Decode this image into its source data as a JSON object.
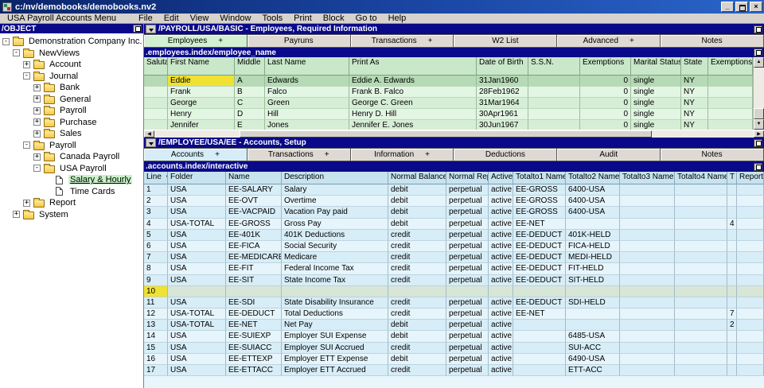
{
  "window": {
    "title": "c:/nv/demobooks/demobooks.nv2"
  },
  "icons": {
    "scroll_up": "▲",
    "scroll_down": "▼",
    "scroll_left": "◀",
    "scroll_right": "▶"
  },
  "menu": {
    "items": [
      "USA Payroll Accounts Menu",
      "File",
      "Edit",
      "View",
      "Window",
      "Tools",
      "Print",
      "Block",
      "Go to",
      "Help"
    ]
  },
  "tree": {
    "header": "/OBJECT",
    "items": [
      {
        "label": "Demonstration Company Inc.",
        "depth": 0,
        "toggle": "-",
        "icon": "folder"
      },
      {
        "label": "NewViews",
        "depth": 1,
        "toggle": "-",
        "icon": "folder"
      },
      {
        "label": "Account",
        "depth": 2,
        "toggle": "+",
        "icon": "folder"
      },
      {
        "label": "Journal",
        "depth": 2,
        "toggle": "-",
        "icon": "folder"
      },
      {
        "label": "Bank",
        "depth": 3,
        "toggle": "+",
        "icon": "folder"
      },
      {
        "label": "General",
        "depth": 3,
        "toggle": "+",
        "icon": "folder"
      },
      {
        "label": "Payroll",
        "depth": 3,
        "toggle": "+",
        "icon": "folder"
      },
      {
        "label": "Purchase",
        "depth": 3,
        "toggle": "+",
        "icon": "folder"
      },
      {
        "label": "Sales",
        "depth": 3,
        "toggle": "+",
        "icon": "folder"
      },
      {
        "label": "Payroll",
        "depth": 2,
        "toggle": "-",
        "icon": "folder"
      },
      {
        "label": "Canada Payroll",
        "depth": 3,
        "toggle": "+",
        "icon": "folder"
      },
      {
        "label": "USA Payroll",
        "depth": 3,
        "toggle": "-",
        "icon": "folder"
      },
      {
        "label": "Salary & Hourly",
        "depth": 4,
        "toggle": "",
        "icon": "doc",
        "selected": true
      },
      {
        "label": "Time Cards",
        "depth": 4,
        "toggle": "",
        "icon": "doc"
      },
      {
        "label": "Report",
        "depth": 2,
        "toggle": "+",
        "icon": "folder"
      },
      {
        "label": "System",
        "depth": 1,
        "toggle": "+",
        "icon": "folder"
      }
    ]
  },
  "employees_panel": {
    "title": "/PAYROLL/USA/BASIC - Employees, Required Information",
    "path": ".employees.index/employee_name",
    "tabs": [
      {
        "label": "Employees",
        "plus": "+",
        "selected": true
      },
      {
        "label": "Payruns",
        "plus": ""
      },
      {
        "label": "Transactions",
        "plus": "+"
      },
      {
        "label": "W2 List",
        "plus": ""
      },
      {
        "label": "Advanced",
        "plus": "+"
      },
      {
        "label": "Notes",
        "plus": ""
      }
    ],
    "columns": [
      "Salutat",
      "First Name",
      "Middle",
      "Last Name",
      "Print As",
      "Date of Birth",
      "S.S.N.",
      "Exemptions",
      "Marital Status",
      "State",
      "Exemptions"
    ],
    "rows": [
      {
        "sal": "",
        "first": "Eddie",
        "middle": "A",
        "last": "Edwards",
        "print": "Eddie A. Edwards",
        "dob": "31Jan1960",
        "ssn": "",
        "ex1": "0",
        "marital": "single",
        "state": "NY",
        "ex2": "",
        "sel": true,
        "fn_hl": true
      },
      {
        "sal": "",
        "first": "Frank",
        "middle": "B",
        "last": "Falco",
        "print": "Frank B. Falco",
        "dob": "28Feb1962",
        "ssn": "",
        "ex1": "0",
        "marital": "single",
        "state": "NY",
        "ex2": ""
      },
      {
        "sal": "",
        "first": "George",
        "middle": "C",
        "last": "Green",
        "print": "George C. Green",
        "dob": "31Mar1964",
        "ssn": "",
        "ex1": "0",
        "marital": "single",
        "state": "NY",
        "ex2": ""
      },
      {
        "sal": "",
        "first": "Henry",
        "middle": "D",
        "last": "Hill",
        "print": "Henry D. Hill",
        "dob": "30Apr1961",
        "ssn": "",
        "ex1": "0",
        "marital": "single",
        "state": "NY",
        "ex2": ""
      },
      {
        "sal": "",
        "first": "Jennifer",
        "middle": "E",
        "last": "Jones",
        "print": "Jennifer E. Jones",
        "dob": "30Jun1967",
        "ssn": "",
        "ex1": "0",
        "marital": "single",
        "state": "NY",
        "ex2": ""
      }
    ]
  },
  "accounts_panel": {
    "title": "/EMPLOYEE/USA/EE - Accounts, Setup",
    "path": ".accounts.index/interactive",
    "tabs": [
      {
        "label": "Accounts",
        "plus": "+",
        "selected": true
      },
      {
        "label": "Transactions",
        "plus": "+"
      },
      {
        "label": "Information",
        "plus": "+"
      },
      {
        "label": "Deductions",
        "plus": ""
      },
      {
        "label": "Audit",
        "plus": ""
      },
      {
        "label": "Notes",
        "plus": ""
      }
    ],
    "columns": [
      "Line",
      "Folder",
      "Name",
      "Description",
      "Normal Balance",
      "Normal Rep",
      "Active",
      "Totalto1 Name",
      "Totalto2 Name",
      "Totalto3 Name",
      "Totalto4 Name",
      "T",
      "Report"
    ],
    "sort_indicator": "v",
    "rows": [
      {
        "line": "1",
        "folder": "USA",
        "name": "EE-SALARY",
        "desc": "Salary",
        "bal": "debit",
        "rep": "perpetual",
        "act": "active",
        "t1": "EE-GROSS",
        "t2": "6400-USA",
        "t3": "",
        "t4": "",
        "t": "",
        "rpt": ""
      },
      {
        "line": "2",
        "folder": "USA",
        "name": "EE-OVT",
        "desc": "Overtime",
        "bal": "debit",
        "rep": "perpetual",
        "act": "active",
        "t1": "EE-GROSS",
        "t2": "6400-USA",
        "t3": "",
        "t4": "",
        "t": "",
        "rpt": ""
      },
      {
        "line": "3",
        "folder": "USA",
        "name": "EE-VACPAID",
        "desc": "Vacation Pay paid",
        "bal": "debit",
        "rep": "perpetual",
        "act": "active",
        "t1": "EE-GROSS",
        "t2": "6400-USA",
        "t3": "",
        "t4": "",
        "t": "",
        "rpt": ""
      },
      {
        "line": "4",
        "folder": "USA-TOTAL",
        "name": "EE-GROSS",
        "desc": "Gross Pay",
        "bal": "debit",
        "rep": "perpetual",
        "act": "active",
        "t1": "EE-NET",
        "t2": "",
        "t3": "",
        "t4": "",
        "t": "4",
        "rpt": ""
      },
      {
        "line": "5",
        "folder": "USA",
        "name": "EE-401K",
        "desc": "401K Deductions",
        "bal": "credit",
        "rep": "perpetual",
        "act": "active",
        "t1": "EE-DEDUCT",
        "t2": "401K-HELD",
        "t3": "",
        "t4": "",
        "t": "",
        "rpt": ""
      },
      {
        "line": "6",
        "folder": "USA",
        "name": "EE-FICA",
        "desc": "Social Security",
        "bal": "credit",
        "rep": "perpetual",
        "act": "active",
        "t1": "EE-DEDUCT",
        "t2": "FICA-HELD",
        "t3": "",
        "t4": "",
        "t": "",
        "rpt": ""
      },
      {
        "line": "7",
        "folder": "USA",
        "name": "EE-MEDICARE",
        "desc": "Medicare",
        "bal": "credit",
        "rep": "perpetual",
        "act": "active",
        "t1": "EE-DEDUCT",
        "t2": "MEDI-HELD",
        "t3": "",
        "t4": "",
        "t": "",
        "rpt": ""
      },
      {
        "line": "8",
        "folder": "USA",
        "name": "EE-FIT",
        "desc": "Federal Income Tax",
        "bal": "credit",
        "rep": "perpetual",
        "act": "active",
        "t1": "EE-DEDUCT",
        "t2": "FIT-HELD",
        "t3": "",
        "t4": "",
        "t": "",
        "rpt": ""
      },
      {
        "line": "9",
        "folder": "USA",
        "name": "EE-SIT",
        "desc": "State Income Tax",
        "bal": "credit",
        "rep": "perpetual",
        "act": "active",
        "t1": "EE-DEDUCT",
        "t2": "SIT-HELD",
        "t3": "",
        "t4": "",
        "t": "",
        "rpt": ""
      },
      {
        "line": "10",
        "folder": "",
        "name": "",
        "desc": "",
        "bal": "",
        "rep": "",
        "act": "",
        "t1": "",
        "t2": "",
        "t3": "",
        "t4": "",
        "t": "",
        "rpt": "",
        "hl": true,
        "line_hl": true
      },
      {
        "line": "11",
        "folder": "USA",
        "name": "EE-SDI",
        "desc": "State Disability Insurance",
        "bal": "credit",
        "rep": "perpetual",
        "act": "active",
        "t1": "EE-DEDUCT",
        "t2": "SDI-HELD",
        "t3": "",
        "t4": "",
        "t": "",
        "rpt": ""
      },
      {
        "line": "12",
        "folder": "USA-TOTAL",
        "name": "EE-DEDUCT",
        "desc": "Total Deductions",
        "bal": "credit",
        "rep": "perpetual",
        "act": "active",
        "t1": "EE-NET",
        "t2": "",
        "t3": "",
        "t4": "",
        "t": "7",
        "rpt": ""
      },
      {
        "line": "13",
        "folder": "USA-TOTAL",
        "name": "EE-NET",
        "desc": "Net Pay",
        "bal": "debit",
        "rep": "perpetual",
        "act": "active",
        "t1": "",
        "t2": "",
        "t3": "",
        "t4": "",
        "t": "2",
        "rpt": ""
      },
      {
        "line": "14",
        "folder": "USA",
        "name": "EE-SUIEXP",
        "desc": "Employer SUI Expense",
        "bal": "debit",
        "rep": "perpetual",
        "act": "active",
        "t1": "",
        "t2": "6485-USA",
        "t3": "",
        "t4": "",
        "t": "",
        "rpt": ""
      },
      {
        "line": "15",
        "folder": "USA",
        "name": "EE-SUIACC",
        "desc": "Employer SUI Accrued",
        "bal": "credit",
        "rep": "perpetual",
        "act": "active",
        "t1": "",
        "t2": "SUI-ACC",
        "t3": "",
        "t4": "",
        "t": "",
        "rpt": ""
      },
      {
        "line": "16",
        "folder": "USA",
        "name": "EE-ETTEXP",
        "desc": "Employer ETT Expense",
        "bal": "debit",
        "rep": "perpetual",
        "act": "active",
        "t1": "",
        "t2": "6490-USA",
        "t3": "",
        "t4": "",
        "t": "",
        "rpt": ""
      },
      {
        "line": "17",
        "folder": "USA",
        "name": "EE-ETTACC",
        "desc": "Employer ETT Accrued",
        "bal": "credit",
        "rep": "perpetual",
        "act": "active",
        "t1": "",
        "t2": "ETT-ACC",
        "t3": "",
        "t4": "",
        "t": "",
        "rpt": ""
      }
    ]
  }
}
